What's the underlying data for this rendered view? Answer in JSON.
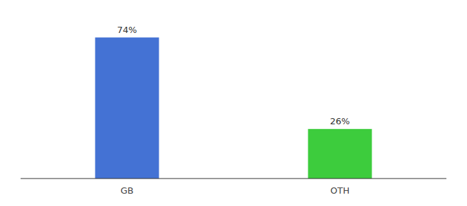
{
  "chart_data": {
    "type": "bar",
    "categories": [
      "GB",
      "OTH"
    ],
    "values": [
      74,
      26
    ],
    "value_labels": [
      "74%",
      "26%"
    ],
    "colors": [
      "#4472d4",
      "#3dcc3d"
    ],
    "ylim": [
      0,
      85
    ],
    "data_labels": true,
    "tick_labels": "x"
  }
}
